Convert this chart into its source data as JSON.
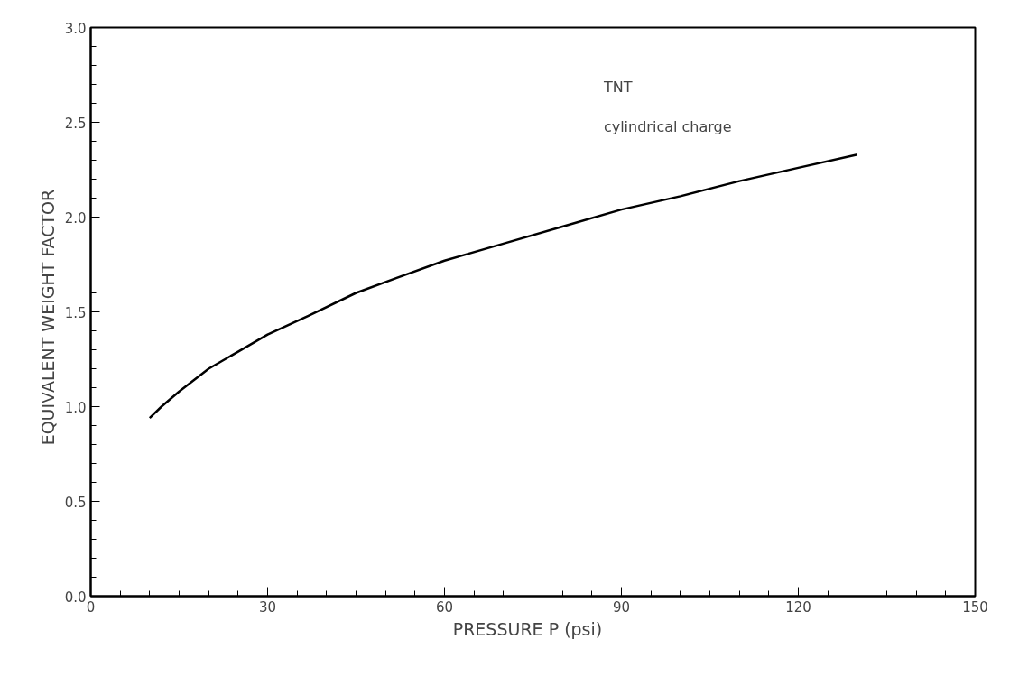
{
  "chart_data": {
    "type": "line",
    "xlabel": "PRESSURE  P  (psi)",
    "ylabel": "EQUIVALENT  WEIGHT  FACTOR",
    "annotations": [
      "TNT",
      "cylindrical charge"
    ],
    "x": [
      10,
      12,
      15,
      20,
      25,
      30,
      37,
      45,
      52,
      60,
      70,
      80,
      90,
      100,
      110,
      120,
      130
    ],
    "series": [
      {
        "color": "#000000",
        "values": [
          0.94,
          1.0,
          1.08,
          1.2,
          1.29,
          1.38,
          1.48,
          1.6,
          1.68,
          1.77,
          1.86,
          1.95,
          2.04,
          2.11,
          2.19,
          2.26,
          2.33
        ]
      }
    ],
    "xlim": [
      0,
      150
    ],
    "xticks": [
      0,
      30,
      60,
      90,
      120,
      150
    ],
    "ylim": [
      0,
      3.0
    ],
    "yticks": [
      {
        "value": 0,
        "label": "0.0"
      },
      0.5,
      {
        "value": 1,
        "label": "1.0"
      },
      1.5,
      {
        "value": 2,
        "label": "2.0"
      },
      2.5,
      {
        "value": 3,
        "label": "3.0"
      }
    ],
    "grid": false,
    "marker": "none",
    "line_style": "solid"
  }
}
